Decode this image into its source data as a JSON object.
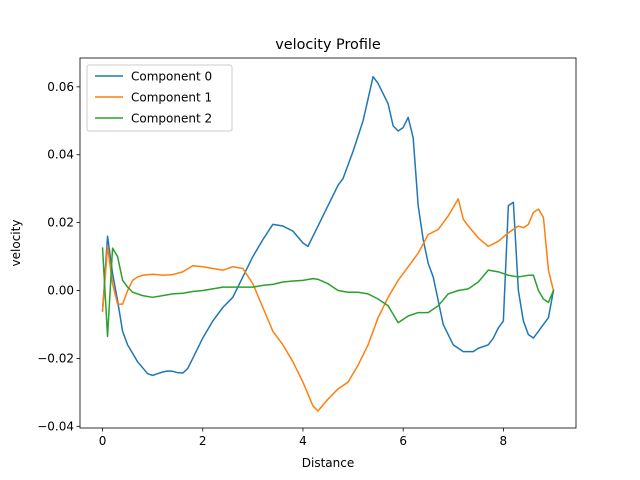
{
  "chart_data": {
    "type": "line",
    "title": "velocity Profile",
    "xlabel": "Distance",
    "ylabel": "velocity",
    "xlim": [
      -0.45,
      9.45
    ],
    "ylim": [
      -0.0405,
      0.0685
    ],
    "xticks": [
      0,
      2,
      4,
      6,
      8
    ],
    "xtick_labels": [
      "0",
      "2",
      "4",
      "6",
      "8"
    ],
    "yticks": [
      -0.04,
      -0.02,
      0.0,
      0.02,
      0.04,
      0.06
    ],
    "ytick_labels": [
      "−0.04",
      "−0.02",
      "0.00",
      "0.02",
      "0.04",
      "0.06"
    ],
    "grid": false,
    "legend_position": "upper-left",
    "series": [
      {
        "name": "Component 0",
        "color": "#1f77b4",
        "x": [
          0.0,
          0.1,
          0.2,
          0.3,
          0.4,
          0.5,
          0.7,
          0.9,
          1.0,
          1.1,
          1.2,
          1.3,
          1.4,
          1.5,
          1.6,
          1.7,
          1.8,
          2.0,
          2.2,
          2.4,
          2.6,
          2.7,
          2.8,
          3.0,
          3.2,
          3.4,
          3.6,
          3.8,
          4.0,
          4.1,
          4.2,
          4.3,
          4.5,
          4.7,
          4.8,
          5.0,
          5.2,
          5.4,
          5.5,
          5.7,
          5.8,
          5.9,
          6.0,
          6.1,
          6.2,
          6.3,
          6.4,
          6.5,
          6.6,
          6.8,
          7.0,
          7.2,
          7.4,
          7.5,
          7.7,
          7.8,
          7.9,
          8.0,
          8.1,
          8.2,
          8.3,
          8.4,
          8.5,
          8.6,
          8.7,
          8.8,
          8.9,
          9.0
        ],
        "y": [
          -0.006,
          0.016,
          0.005,
          -0.003,
          -0.012,
          -0.016,
          -0.021,
          -0.0245,
          -0.025,
          -0.0245,
          -0.024,
          -0.0237,
          -0.0238,
          -0.0242,
          -0.0243,
          -0.023,
          -0.02,
          -0.014,
          -0.009,
          -0.005,
          -0.002,
          0.001,
          0.004,
          0.01,
          0.015,
          0.0195,
          0.019,
          0.0175,
          0.014,
          0.013,
          0.016,
          0.019,
          0.025,
          0.031,
          0.033,
          0.041,
          0.05,
          0.063,
          0.061,
          0.055,
          0.0485,
          0.047,
          0.048,
          0.051,
          0.045,
          0.025,
          0.015,
          0.008,
          0.004,
          -0.01,
          -0.016,
          -0.018,
          -0.018,
          -0.017,
          -0.016,
          -0.014,
          -0.011,
          -0.009,
          0.025,
          0.026,
          0.0,
          -0.009,
          -0.013,
          -0.014,
          -0.012,
          -0.01,
          -0.008,
          0.0
        ],
        "x_display_fix": true
      },
      {
        "name": "Component 1",
        "color": "#ff7f0e",
        "x": [
          0.0,
          0.1,
          0.2,
          0.3,
          0.4,
          0.5,
          0.6,
          0.7,
          0.8,
          1.0,
          1.2,
          1.4,
          1.6,
          1.8,
          2.0,
          2.2,
          2.4,
          2.6,
          2.8,
          3.0,
          3.2,
          3.4,
          3.6,
          3.8,
          4.0,
          4.2,
          4.3,
          4.5,
          4.7,
          4.9,
          5.1,
          5.3,
          5.5,
          5.7,
          5.9,
          6.1,
          6.3,
          6.5,
          6.7,
          6.9,
          7.1,
          7.2,
          7.3,
          7.5,
          7.7,
          7.9,
          8.1,
          8.3,
          8.4,
          8.5,
          8.6,
          8.7,
          8.8,
          8.9,
          9.0
        ],
        "y": [
          -0.006,
          0.013,
          0.002,
          -0.004,
          -0.004,
          0.0,
          0.003,
          0.004,
          0.0045,
          0.0048,
          0.0045,
          0.0047,
          0.0055,
          0.0073,
          0.007,
          0.0065,
          0.006,
          0.007,
          0.0065,
          0.002,
          -0.005,
          -0.012,
          -0.016,
          -0.021,
          -0.027,
          -0.034,
          -0.0355,
          -0.032,
          -0.029,
          -0.027,
          -0.022,
          -0.016,
          -0.008,
          -0.002,
          0.003,
          0.007,
          0.011,
          0.0165,
          0.018,
          0.022,
          0.027,
          0.021,
          0.019,
          0.0155,
          0.013,
          0.0145,
          0.017,
          0.019,
          0.0185,
          0.0195,
          0.023,
          0.024,
          0.0215,
          0.006,
          0.0
        ],
        "x_display_fix": true
      },
      {
        "name": "Component 2",
        "color": "#2ca02c",
        "x": [
          0.0,
          0.1,
          0.2,
          0.3,
          0.4,
          0.5,
          0.6,
          0.8,
          1.0,
          1.2,
          1.4,
          1.6,
          1.8,
          2.0,
          2.2,
          2.4,
          2.6,
          2.8,
          3.0,
          3.2,
          3.4,
          3.6,
          3.8,
          4.0,
          4.2,
          4.3,
          4.5,
          4.7,
          4.9,
          5.1,
          5.3,
          5.5,
          5.6,
          5.7,
          5.9,
          6.1,
          6.3,
          6.5,
          6.7,
          6.9,
          7.1,
          7.3,
          7.5,
          7.7,
          7.9,
          8.1,
          8.3,
          8.5,
          8.6,
          8.7,
          8.8,
          8.9,
          9.0
        ],
        "y": [
          0.0125,
          -0.0135,
          0.0125,
          0.01,
          0.003,
          0.001,
          -0.0005,
          -0.0015,
          -0.002,
          -0.0015,
          -0.001,
          -0.0008,
          -0.0003,
          0.0,
          0.0005,
          0.001,
          0.001,
          0.001,
          0.001,
          0.0015,
          0.0018,
          0.0025,
          0.0028,
          0.003,
          0.0035,
          0.0033,
          0.002,
          0.0,
          -0.0005,
          -0.0005,
          -0.001,
          -0.0025,
          -0.0035,
          -0.0045,
          -0.0095,
          -0.0075,
          -0.0065,
          -0.0065,
          -0.0045,
          -0.001,
          0.0,
          0.0005,
          0.0025,
          0.006,
          0.0055,
          0.0045,
          0.004,
          0.0045,
          0.0045,
          0.0,
          -0.0025,
          -0.0035,
          0.0
        ],
        "x_display_fix": true
      }
    ]
  }
}
